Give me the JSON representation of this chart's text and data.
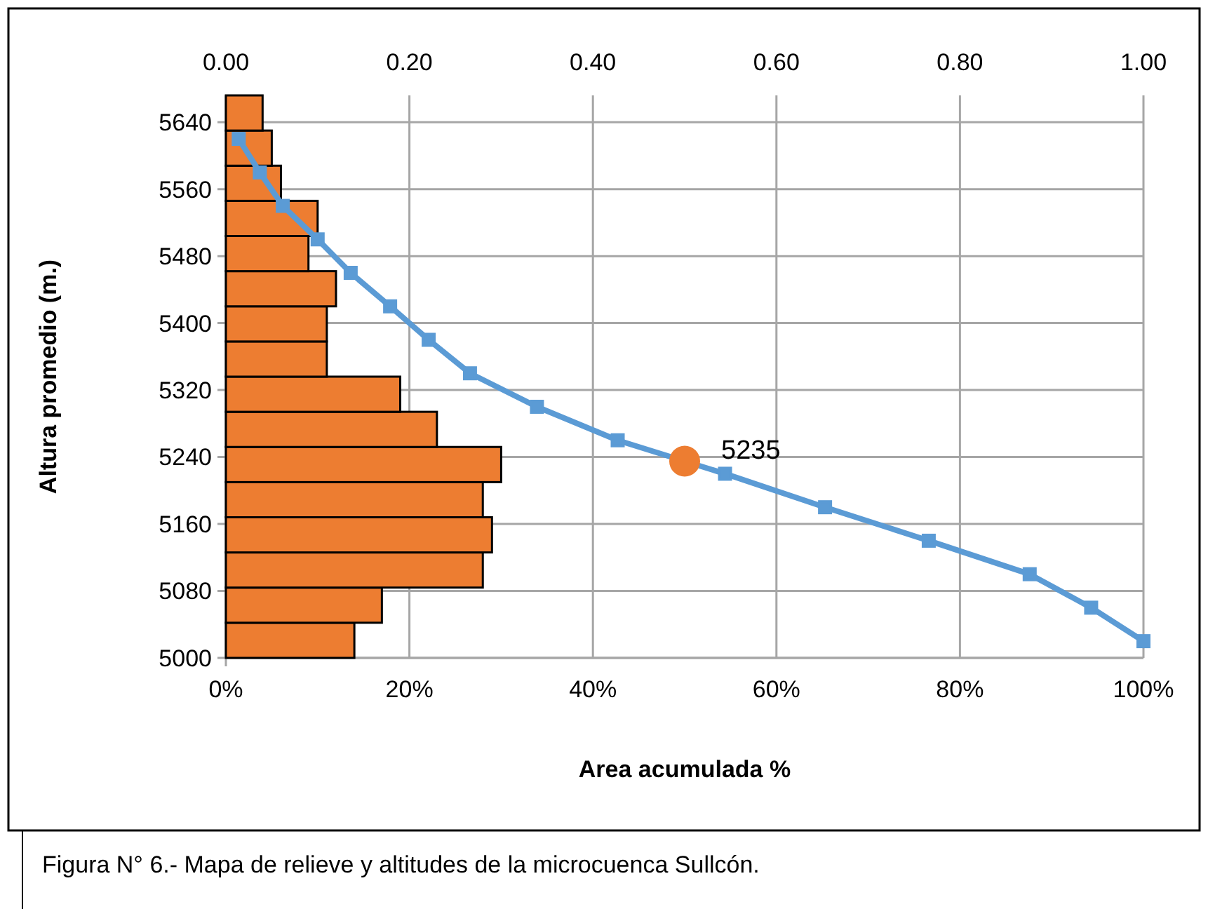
{
  "chart_data": {
    "type": "bar",
    "orientation": "horizontal",
    "xlabel": "Area acumulada %",
    "ylabel": "Altura promedio (m.)",
    "xlim": [
      0,
      100
    ],
    "xticks": [
      {
        "value": 0,
        "label": "0%"
      },
      {
        "value": 20,
        "label": "20%"
      },
      {
        "value": 40,
        "label": "40%"
      },
      {
        "value": 60,
        "label": "60%"
      },
      {
        "value": 80,
        "label": "80%"
      },
      {
        "value": 100,
        "label": "100%"
      }
    ],
    "x2lim": [
      0,
      1
    ],
    "x2ticks": [
      {
        "value": 0,
        "label": "0.00"
      },
      {
        "value": 0.2,
        "label": "0.20"
      },
      {
        "value": 0.4,
        "label": "0.40"
      },
      {
        "value": 0.6,
        "label": "0.60"
      },
      {
        "value": 0.8,
        "label": "0.80"
      },
      {
        "value": 1,
        "label": "1.00"
      }
    ],
    "ylim": [
      5000,
      5672
    ],
    "yticks": [
      5000,
      5080,
      5160,
      5240,
      5320,
      5400,
      5480,
      5560,
      5640
    ],
    "grid": true,
    "series": [
      {
        "axis": "x2",
        "color": "#ed7d31",
        "x": [
          5021,
          5063,
          5105,
          5147,
          5189,
          5231,
          5273,
          5315,
          5357,
          5399,
          5441,
          5483,
          5525,
          5567,
          5609,
          5651
        ],
        "values": [
          0.14,
          0.17,
          0.28,
          0.29,
          0.28,
          0.3,
          0.23,
          0.19,
          0.11,
          0.11,
          0.12,
          0.09,
          0.1,
          0.06,
          0.05,
          0.04
        ]
      },
      {
        "type": "line",
        "color": "#5b9bd5",
        "marker": "square",
        "x": [
          5620,
          5580,
          5540,
          5500,
          5460,
          5420,
          5380,
          5340,
          5300,
          5260,
          5220,
          5180,
          5140,
          5100,
          5060,
          5020
        ],
        "values": [
          1.4,
          3.7,
          6.2,
          10.0,
          13.6,
          17.9,
          22.1,
          26.6,
          33.9,
          42.7,
          54.4,
          65.3,
          76.6,
          87.6,
          94.3,
          100
        ]
      },
      {
        "type": "scatter",
        "color": "#ed7d31",
        "marker": "circle",
        "x": [
          5235
        ],
        "values": [
          50
        ]
      }
    ],
    "annotations": [
      {
        "text": "5235",
        "x": 50,
        "y": 5235
      },
      "Figura N° 6.- Mapa de relieve y altitudes de la microcuenca Sullcón."
    ]
  }
}
